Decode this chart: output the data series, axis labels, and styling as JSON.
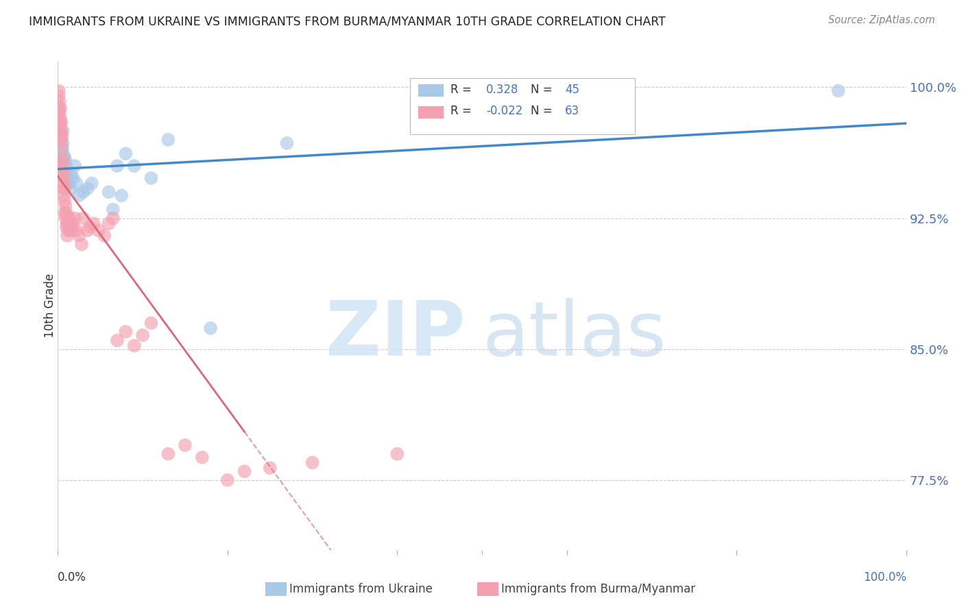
{
  "title": "IMMIGRANTS FROM UKRAINE VS IMMIGRANTS FROM BURMA/MYANMAR 10TH GRADE CORRELATION CHART",
  "source": "Source: ZipAtlas.com",
  "ylabel": "10th Grade",
  "xlim": [
    0.0,
    1.0
  ],
  "ylim": [
    0.735,
    1.015
  ],
  "yticks": [
    0.775,
    0.85,
    0.925,
    1.0
  ],
  "ytick_labels": [
    "77.5%",
    "85.0%",
    "92.5%",
    "100.0%"
  ],
  "ukraine_R": 0.328,
  "ukraine_N": 45,
  "burma_R": -0.022,
  "burma_N": 63,
  "ukraine_color": "#a8c8e8",
  "burma_color": "#f4a0b0",
  "ukraine_line_color": "#4488cc",
  "burma_line_color": "#dd6677",
  "background_color": "#ffffff",
  "ukraine_x": [
    0.001,
    0.002,
    0.002,
    0.003,
    0.003,
    0.003,
    0.004,
    0.004,
    0.004,
    0.005,
    0.005,
    0.006,
    0.006,
    0.006,
    0.007,
    0.007,
    0.008,
    0.008,
    0.009,
    0.009,
    0.01,
    0.01,
    0.011,
    0.012,
    0.013,
    0.015,
    0.016,
    0.018,
    0.02,
    0.022,
    0.025,
    0.03,
    0.035,
    0.04,
    0.06,
    0.065,
    0.07,
    0.075,
    0.08,
    0.09,
    0.11,
    0.13,
    0.18,
    0.27,
    0.92
  ],
  "ukraine_y": [
    0.97,
    0.975,
    0.965,
    0.968,
    0.972,
    0.96,
    0.968,
    0.973,
    0.965,
    0.965,
    0.958,
    0.962,
    0.968,
    0.975,
    0.96,
    0.955,
    0.96,
    0.953,
    0.958,
    0.95,
    0.955,
    0.945,
    0.952,
    0.948,
    0.945,
    0.942,
    0.95,
    0.948,
    0.955,
    0.945,
    0.938,
    0.94,
    0.942,
    0.945,
    0.94,
    0.93,
    0.955,
    0.938,
    0.962,
    0.955,
    0.948,
    0.97,
    0.862,
    0.968,
    0.998
  ],
  "burma_x": [
    0.001,
    0.001,
    0.002,
    0.002,
    0.002,
    0.002,
    0.003,
    0.003,
    0.003,
    0.003,
    0.004,
    0.004,
    0.004,
    0.005,
    0.005,
    0.005,
    0.005,
    0.006,
    0.006,
    0.006,
    0.007,
    0.007,
    0.007,
    0.008,
    0.008,
    0.008,
    0.009,
    0.009,
    0.01,
    0.01,
    0.011,
    0.011,
    0.012,
    0.013,
    0.014,
    0.015,
    0.016,
    0.018,
    0.02,
    0.022,
    0.025,
    0.028,
    0.03,
    0.035,
    0.038,
    0.042,
    0.048,
    0.055,
    0.06,
    0.065,
    0.07,
    0.08,
    0.09,
    0.1,
    0.11,
    0.13,
    0.15,
    0.17,
    0.2,
    0.22,
    0.25,
    0.3,
    0.4
  ],
  "burma_y": [
    0.995,
    0.998,
    0.992,
    0.988,
    0.985,
    0.98,
    0.988,
    0.982,
    0.978,
    0.972,
    0.98,
    0.975,
    0.97,
    0.972,
    0.965,
    0.958,
    0.952,
    0.958,
    0.952,
    0.945,
    0.948,
    0.942,
    0.938,
    0.942,
    0.935,
    0.928,
    0.932,
    0.925,
    0.928,
    0.92,
    0.922,
    0.915,
    0.918,
    0.92,
    0.925,
    0.918,
    0.922,
    0.92,
    0.925,
    0.918,
    0.915,
    0.91,
    0.925,
    0.918,
    0.92,
    0.922,
    0.918,
    0.915,
    0.922,
    0.925,
    0.855,
    0.86,
    0.852,
    0.858,
    0.865,
    0.79,
    0.795,
    0.788,
    0.775,
    0.78,
    0.782,
    0.785,
    0.79
  ]
}
